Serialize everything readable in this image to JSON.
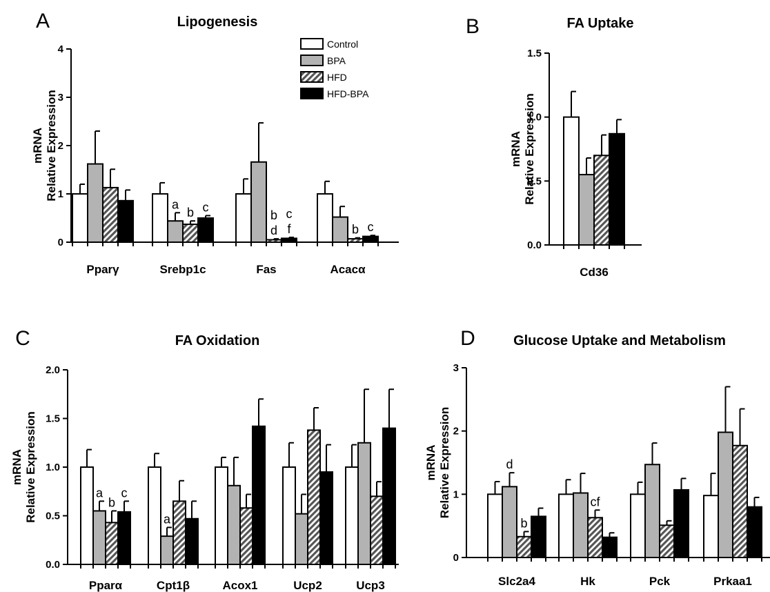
{
  "legend": {
    "items": [
      {
        "name": "Control",
        "fill": "#ffffff"
      },
      {
        "name": "BPA",
        "fill": "#b3b3b3"
      },
      {
        "name": "HFD",
        "fill": "hatch"
      },
      {
        "name": "HFD-BPA",
        "fill": "#000000"
      }
    ]
  },
  "colors": {
    "control": "#ffffff",
    "bpa": "#b3b3b3",
    "hfd_hatch": "#555555",
    "hfd_bpa": "#000000",
    "axis": "#000000"
  },
  "chart_data": [
    {
      "panel": "A",
      "type": "bar",
      "title": "Lipogenesis",
      "ylabel": [
        "mRNA",
        "Relative Expression"
      ],
      "ylim": [
        0,
        4
      ],
      "yticks": [
        "0",
        "1",
        "2",
        "3",
        "4"
      ],
      "categories": [
        "Pparγ",
        "Srebp1c",
        "Fas",
        "Acacα"
      ],
      "series": [
        {
          "name": "Control",
          "values": [
            1.0,
            1.0,
            1.0,
            1.0
          ],
          "errors": [
            0.2,
            0.23,
            0.31,
            0.26
          ]
        },
        {
          "name": "BPA",
          "values": [
            1.62,
            0.44,
            1.66,
            0.52
          ],
          "errors": [
            0.68,
            0.17,
            0.81,
            0.22
          ]
        },
        {
          "name": "HFD",
          "values": [
            1.13,
            0.37,
            0.05,
            0.07
          ],
          "errors": [
            0.38,
            0.07,
            0.02,
            0.02
          ]
        },
        {
          "name": "HFD-BPA",
          "values": [
            0.86,
            0.5,
            0.08,
            0.12
          ],
          "errors": [
            0.22,
            0.05,
            0.02,
            0.02
          ]
        }
      ],
      "annotations": [
        {
          "category": 1,
          "series": 1,
          "text": "a"
        },
        {
          "category": 1,
          "series": 2,
          "text": "b"
        },
        {
          "category": 1,
          "series": 3,
          "text": "c"
        },
        {
          "category": 2,
          "series": 2,
          "text": "b"
        },
        {
          "category": 2,
          "series": 2,
          "text": "d",
          "row": 2
        },
        {
          "category": 2,
          "series": 3,
          "text": "c"
        },
        {
          "category": 2,
          "series": 3,
          "text": "f",
          "row": 2
        },
        {
          "category": 3,
          "series": 2,
          "text": "b"
        },
        {
          "category": 3,
          "series": 3,
          "text": "c"
        }
      ]
    },
    {
      "panel": "B",
      "type": "bar",
      "title": "FA Uptake",
      "ylabel": [
        "mRNA",
        "Relative Expression"
      ],
      "ylim": [
        0,
        1.5
      ],
      "yticks": [
        "0.0",
        "0.5",
        "1.0",
        "1.5"
      ],
      "categories": [
        "Cd36"
      ],
      "series": [
        {
          "name": "Control",
          "values": [
            1.0
          ],
          "errors": [
            0.2
          ]
        },
        {
          "name": "BPA",
          "values": [
            0.55
          ],
          "errors": [
            0.13
          ]
        },
        {
          "name": "HFD",
          "values": [
            0.7
          ],
          "errors": [
            0.16
          ]
        },
        {
          "name": "HFD-BPA",
          "values": [
            0.87
          ],
          "errors": [
            0.11
          ]
        }
      ],
      "annotations": []
    },
    {
      "panel": "C",
      "type": "bar",
      "title": "FA Oxidation",
      "ylabel": [
        "mRNA",
        "Relative Expression"
      ],
      "ylim": [
        0,
        2.0
      ],
      "yticks": [
        "0.0",
        "0.5",
        "1.0",
        "1.5",
        "2.0"
      ],
      "categories": [
        "Pparα",
        "Cpt1β",
        "Acox1",
        "Ucp2",
        "Ucp3"
      ],
      "series": [
        {
          "name": "Control",
          "values": [
            1.0,
            1.0,
            1.0,
            1.0,
            1.0
          ],
          "errors": [
            0.18,
            0.14,
            0.1,
            0.25,
            0.23
          ]
        },
        {
          "name": "BPA",
          "values": [
            0.55,
            0.29,
            0.81,
            0.52,
            1.25
          ],
          "errors": [
            0.1,
            0.09,
            0.29,
            0.2,
            0.55
          ]
        },
        {
          "name": "HFD",
          "values": [
            0.43,
            0.65,
            0.58,
            1.38,
            0.7
          ],
          "errors": [
            0.12,
            0.21,
            0.14,
            0.23,
            0.15
          ]
        },
        {
          "name": "HFD-BPA",
          "values": [
            0.54,
            0.47,
            1.42,
            0.95,
            1.4
          ],
          "errors": [
            0.11,
            0.18,
            0.28,
            0.28,
            0.4
          ]
        }
      ],
      "annotations": [
        {
          "category": 0,
          "series": 1,
          "text": "a"
        },
        {
          "category": 0,
          "series": 2,
          "text": "b"
        },
        {
          "category": 0,
          "series": 3,
          "text": "c"
        },
        {
          "category": 1,
          "series": 1,
          "text": "a"
        }
      ]
    },
    {
      "panel": "D",
      "type": "bar",
      "title": "Glucose Uptake and Metabolism",
      "ylabel": [
        "mRNA",
        "Relative Expression"
      ],
      "ylim": [
        0,
        3
      ],
      "yticks": [
        "0",
        "1",
        "2",
        "3"
      ],
      "categories": [
        "Slc2a4",
        "Hk",
        "Pck",
        "Prkaa1"
      ],
      "series": [
        {
          "name": "Control",
          "values": [
            1.0,
            1.0,
            1.0,
            0.98
          ],
          "errors": [
            0.2,
            0.23,
            0.19,
            0.35
          ]
        },
        {
          "name": "BPA",
          "values": [
            1.12,
            1.02,
            1.47,
            1.98
          ],
          "errors": [
            0.22,
            0.31,
            0.34,
            0.72
          ]
        },
        {
          "name": "HFD",
          "values": [
            0.33,
            0.63,
            0.51,
            1.77
          ],
          "errors": [
            0.08,
            0.12,
            0.07,
            0.58
          ]
        },
        {
          "name": "HFD-BPA",
          "values": [
            0.65,
            0.32,
            1.07,
            0.8
          ],
          "errors": [
            0.13,
            0.07,
            0.18,
            0.15
          ]
        }
      ],
      "annotations": [
        {
          "category": 0,
          "series": 1,
          "text": "d"
        },
        {
          "category": 0,
          "series": 2,
          "text": "b"
        },
        {
          "category": 1,
          "series": 2,
          "text": "cf"
        }
      ]
    }
  ]
}
